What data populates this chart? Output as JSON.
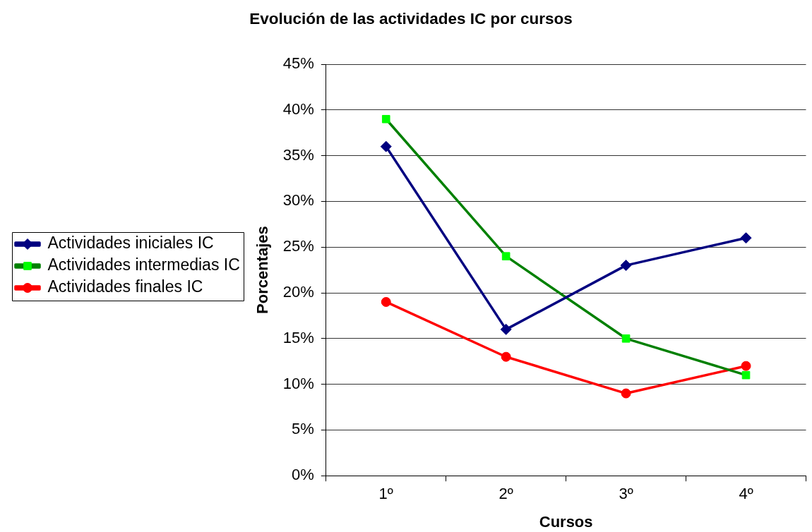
{
  "chart_data": {
    "type": "line",
    "title": "Evolución de las actividades IC por cursos",
    "xlabel": "Cursos",
    "ylabel": "Porcentajes",
    "categories": [
      "1º",
      "2º",
      "3º",
      "4º"
    ],
    "series": [
      {
        "name": "Actividades iniciales IC",
        "color": "#000080",
        "marker": "diamond",
        "values": [
          36,
          16,
          23,
          26
        ]
      },
      {
        "name": "Actividades intermedias IC",
        "color": "#008000",
        "colors": [
          "#00ff00",
          "#00ff00",
          "#00ff00",
          "#00ff00"
        ],
        "marker": "square",
        "values": [
          39,
          24,
          15,
          11
        ]
      },
      {
        "name": "Actividades finales IC",
        "color": "#ff0000",
        "marker": "circle",
        "values": [
          19,
          13,
          9,
          12
        ]
      }
    ],
    "ylim": [
      0,
      45
    ],
    "yticks": [
      {
        "value": 0,
        "label": "0%"
      },
      {
        "value": 5,
        "label": "5%"
      },
      {
        "value": 10,
        "label": "10%"
      },
      {
        "value": 15,
        "label": "15%"
      },
      {
        "value": 20,
        "label": "20%"
      },
      {
        "value": 25,
        "label": "25%"
      },
      {
        "value": 30,
        "label": "30%"
      },
      {
        "value": 35,
        "label": "35%"
      },
      {
        "value": 40,
        "label": "40%"
      },
      {
        "value": 45,
        "label": "45%"
      }
    ],
    "grid": "y",
    "legend": "left",
    "line_style": "solid"
  }
}
